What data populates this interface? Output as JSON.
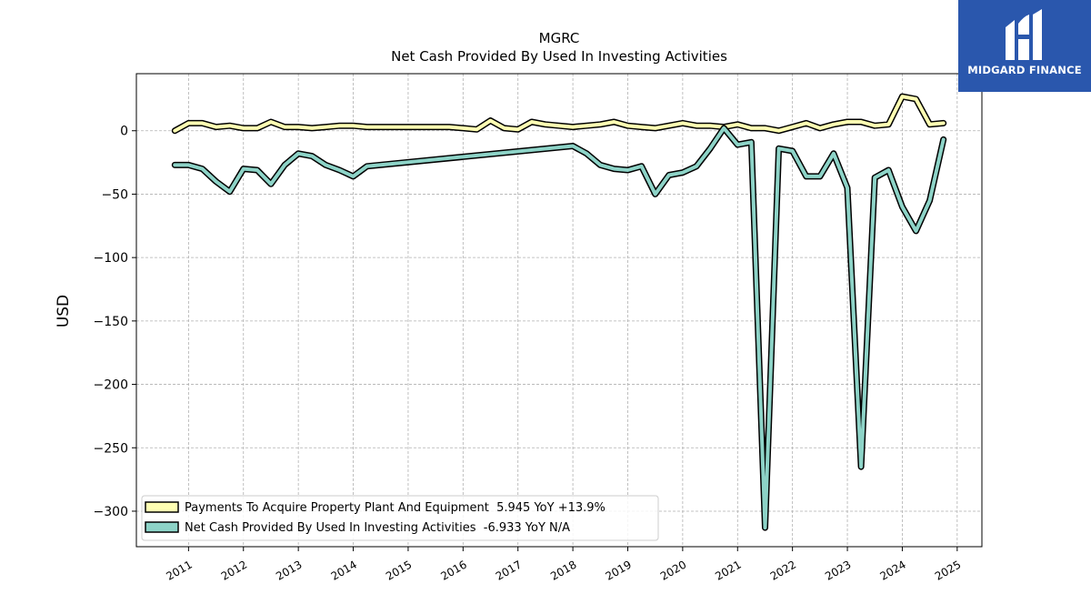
{
  "brand": {
    "name": "MIDGARD FINANCE",
    "bg_color": "#2a57ad"
  },
  "chart_data": {
    "type": "line",
    "title": "MGRC",
    "subtitle": "Net Cash Provided By Used In Investing Activities",
    "xlabel": "",
    "ylabel": "USD",
    "ylim": [
      -328,
      45
    ],
    "xlim": [
      2010.05,
      2025.45
    ],
    "yticks": [
      0,
      -50,
      -100,
      -150,
      -200,
      -250,
      -300
    ],
    "ytick_labels": [
      "0",
      "−50",
      "−100",
      "−150",
      "−200",
      "−250",
      "−300"
    ],
    "xticks": [
      2011,
      2012,
      2013,
      2014,
      2015,
      2016,
      2017,
      2018,
      2019,
      2020,
      2021,
      2022,
      2023,
      2024,
      2025
    ],
    "xtick_labels": [
      "2011",
      "2012",
      "2013",
      "2014",
      "2015",
      "2016",
      "2017",
      "2018",
      "2019",
      "2020",
      "2021",
      "2022",
      "2023",
      "2024",
      "2025"
    ],
    "grid": true,
    "legend_position": "bottom-left",
    "series": [
      {
        "name": "Payments To Acquire Property Plant And Equipment  5.945 YoY +13.9%",
        "color": "#ffffb3",
        "points": [
          [
            2010.75,
            0
          ],
          [
            2011.0,
            6
          ],
          [
            2011.25,
            6
          ],
          [
            2011.5,
            3
          ],
          [
            2011.75,
            4
          ],
          [
            2012.0,
            2
          ],
          [
            2012.25,
            2
          ],
          [
            2012.5,
            7
          ],
          [
            2012.75,
            3
          ],
          [
            2013.0,
            3
          ],
          [
            2013.25,
            2
          ],
          [
            2013.5,
            3
          ],
          [
            2013.75,
            4
          ],
          [
            2014.0,
            4
          ],
          [
            2014.25,
            3
          ],
          [
            2014.5,
            3
          ],
          [
            2014.75,
            3
          ],
          [
            2015.0,
            3
          ],
          [
            2015.25,
            3
          ],
          [
            2015.5,
            3
          ],
          [
            2015.75,
            3
          ],
          [
            2016.0,
            2
          ],
          [
            2016.25,
            1
          ],
          [
            2016.5,
            8
          ],
          [
            2016.75,
            2
          ],
          [
            2017.0,
            1
          ],
          [
            2017.25,
            7
          ],
          [
            2017.5,
            5
          ],
          [
            2017.75,
            4
          ],
          [
            2018.0,
            3
          ],
          [
            2018.25,
            4
          ],
          [
            2018.5,
            5
          ],
          [
            2018.75,
            7
          ],
          [
            2019.0,
            4
          ],
          [
            2019.25,
            3
          ],
          [
            2019.5,
            2
          ],
          [
            2019.75,
            4
          ],
          [
            2020.0,
            6
          ],
          [
            2020.25,
            4
          ],
          [
            2020.5,
            4
          ],
          [
            2020.75,
            3
          ],
          [
            2021.0,
            5
          ],
          [
            2021.25,
            2
          ],
          [
            2021.5,
            2
          ],
          [
            2021.75,
            0
          ],
          [
            2022.0,
            3
          ],
          [
            2022.25,
            6
          ],
          [
            2022.5,
            2
          ],
          [
            2022.75,
            5
          ],
          [
            2023.0,
            7
          ],
          [
            2023.25,
            7
          ],
          [
            2023.5,
            4
          ],
          [
            2023.75,
            5
          ],
          [
            2024.0,
            27
          ],
          [
            2024.25,
            25
          ],
          [
            2024.5,
            5
          ],
          [
            2024.75,
            5.945
          ]
        ]
      },
      {
        "name": "Net Cash Provided By Used In Investing Activities  -6.933 YoY N/A",
        "color": "#8dd3c7",
        "points": [
          [
            2010.75,
            -27
          ],
          [
            2011.0,
            -27
          ],
          [
            2011.25,
            -30
          ],
          [
            2011.5,
            -40
          ],
          [
            2011.75,
            -48
          ],
          [
            2012.0,
            -30
          ],
          [
            2012.25,
            -31
          ],
          [
            2012.5,
            -42
          ],
          [
            2012.75,
            -27
          ],
          [
            2013.0,
            -18
          ],
          [
            2013.25,
            -20
          ],
          [
            2013.5,
            -27
          ],
          [
            2013.75,
            -31
          ],
          [
            2014.0,
            -36
          ],
          [
            2014.25,
            -28
          ],
          [
            2018.0,
            -12
          ],
          [
            2018.25,
            -18
          ],
          [
            2018.5,
            -27
          ],
          [
            2018.75,
            -30
          ],
          [
            2019.0,
            -31
          ],
          [
            2019.25,
            -28
          ],
          [
            2019.5,
            -50
          ],
          [
            2019.75,
            -35
          ],
          [
            2020.0,
            -33
          ],
          [
            2020.25,
            -28
          ],
          [
            2020.5,
            -14
          ],
          [
            2020.75,
            2
          ],
          [
            2021.0,
            -11
          ],
          [
            2021.25,
            -9
          ],
          [
            2021.5,
            -313
          ],
          [
            2021.75,
            -14
          ],
          [
            2022.0,
            -16
          ],
          [
            2022.25,
            -36
          ],
          [
            2022.5,
            -36
          ],
          [
            2022.75,
            -18
          ],
          [
            2023.0,
            -45
          ],
          [
            2023.25,
            -265
          ],
          [
            2023.5,
            -37
          ],
          [
            2023.75,
            -31
          ],
          [
            2024.0,
            -60
          ],
          [
            2024.25,
            -79
          ],
          [
            2024.5,
            -55
          ],
          [
            2024.75,
            -6.933
          ]
        ]
      }
    ]
  }
}
